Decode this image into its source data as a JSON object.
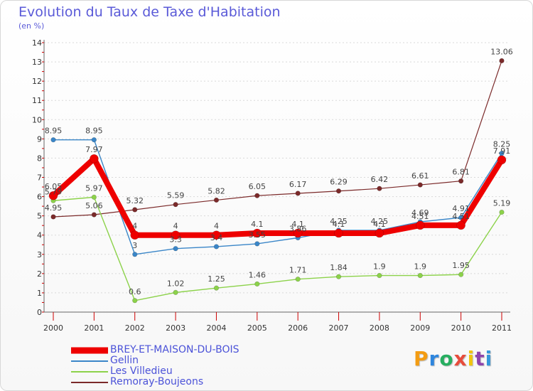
{
  "header": {
    "title": "Evolution du Taux de Taxe d'Habitation",
    "subtitle": "(en %)"
  },
  "brand": {
    "letters": [
      "P",
      "r",
      "o",
      "x",
      "i",
      "t",
      "i"
    ],
    "colors": [
      "#f39c12",
      "#2e86de",
      "#27ae60",
      "#e74c3c",
      "#f1c40f",
      "#8e44ad",
      "#3498db"
    ]
  },
  "chart_data": {
    "type": "line",
    "title": "Evolution du Taux de Taxe d'Habitation",
    "ylabel": "(en %)",
    "xlabel": "",
    "x": [
      "2000",
      "2001",
      "2002",
      "2003",
      "2004",
      "2005",
      "2006",
      "2007",
      "2008",
      "2009",
      "2010",
      "2011"
    ],
    "ylim": [
      0,
      14
    ],
    "yticks": [
      "0",
      "1",
      "2",
      "3",
      "4",
      "5",
      "6",
      "7",
      "8",
      "9",
      "10",
      "11",
      "12",
      "13",
      "14"
    ],
    "grid": "horizontal dotted",
    "legend_position": "bottom",
    "series": [
      {
        "name": "Remoray-Boujeons",
        "color": "#7b2a2a",
        "values": [
          4.95,
          5.06,
          5.32,
          5.59,
          5.82,
          6.05,
          6.17,
          6.29,
          6.42,
          6.61,
          6.81,
          13.06
        ],
        "labels": [
          "4.95",
          "5.06",
          "5.32",
          "5.59",
          "5.82",
          "6.05",
          "6.17",
          "6.29",
          "6.42",
          "6.61",
          "6.81",
          "13.06"
        ]
      },
      {
        "name": "Les Villedieu",
        "color": "#8cd24a",
        "values": [
          5.79,
          5.97,
          0.6,
          1.02,
          1.25,
          1.46,
          1.71,
          1.84,
          1.9,
          1.9,
          1.95,
          5.19
        ],
        "labels": [
          "5.79",
          "5.97",
          "0.6",
          "1.02",
          "1.25",
          "1.46",
          "1.71",
          "1.84",
          "1.9",
          "1.9",
          "1.95",
          "5.19"
        ]
      },
      {
        "name": "Gellin",
        "color": "#3a86c8",
        "values": [
          8.95,
          8.95,
          3.0,
          3.3,
          3.4,
          3.55,
          3.86,
          4.25,
          4.25,
          4.69,
          4.91,
          8.25
        ],
        "labels": [
          "8.95",
          "8.95",
          "3",
          "3.3",
          "3.4",
          "3.55",
          "3.86",
          "4.25",
          "4.25",
          "4.69",
          "4.91",
          "8.25"
        ]
      },
      {
        "name": "BREY-ET-MAISON-DU-BOIS",
        "color": "#ee0000",
        "values": [
          6.05,
          7.97,
          4.0,
          4.0,
          4.0,
          4.1,
          4.1,
          4.1,
          4.1,
          4.51,
          4.51,
          7.91
        ],
        "labels": [
          "6.05",
          "7.97",
          "4",
          "4",
          "4",
          "4.1",
          "4.1",
          "4.1",
          "4.1",
          "4.51",
          "4.51",
          "7.91"
        ]
      }
    ]
  },
  "legend": {
    "items": [
      {
        "label": "BREY-ET-MAISON-DU-BOIS",
        "color": "#ee0000"
      },
      {
        "label": "Gellin",
        "color": "#3a86c8"
      },
      {
        "label": "Les Villedieu",
        "color": "#8cd24a"
      },
      {
        "label": "Remoray-Boujeons",
        "color": "#7b2a2a"
      }
    ]
  }
}
